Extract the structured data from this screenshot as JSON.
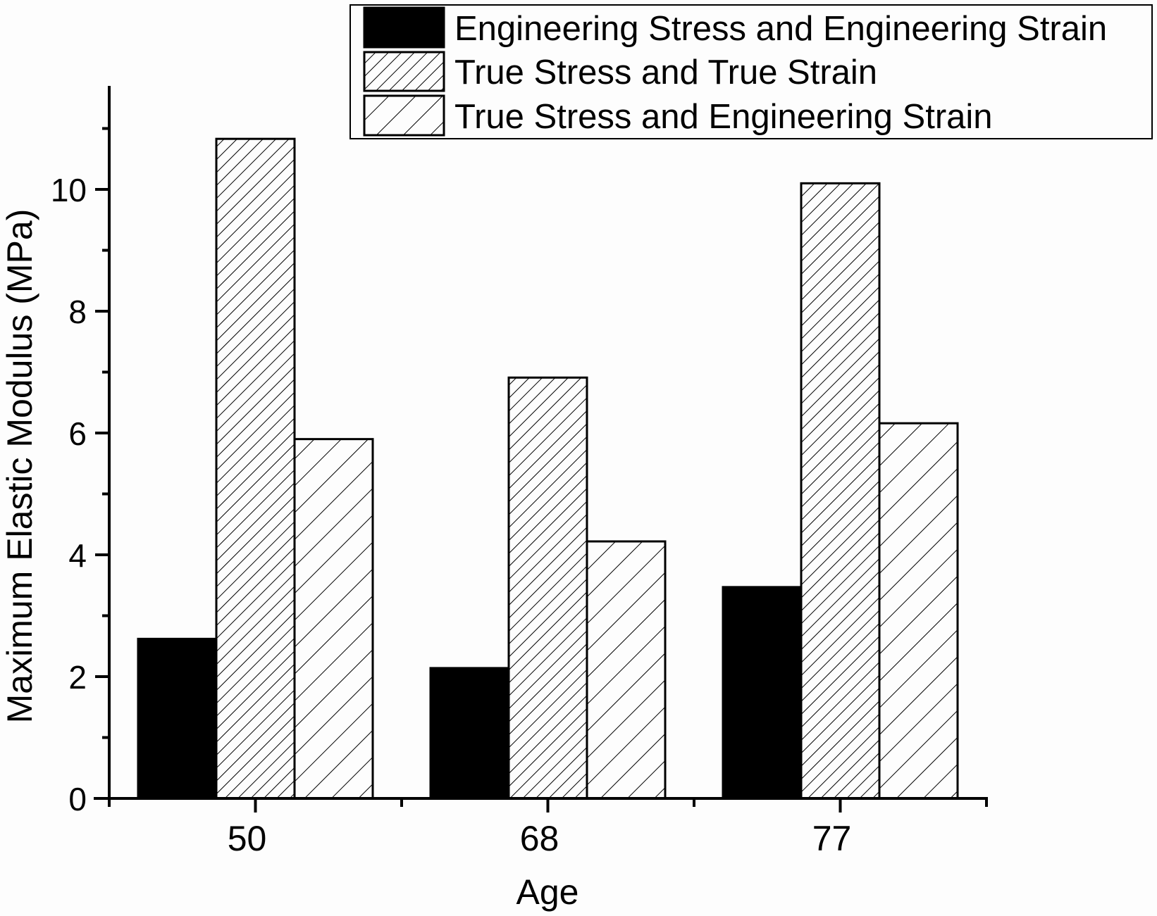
{
  "chart_data": {
    "type": "bar",
    "title": "",
    "xlabel": "Age",
    "ylabel": "Maximum Elastic Modulus (MPa)",
    "categories": [
      "50",
      "68",
      "77"
    ],
    "ylim": [
      0,
      11.5
    ],
    "yticks": [
      0,
      2,
      4,
      6,
      8,
      10
    ],
    "yticks_minor": [
      1,
      3,
      5,
      7,
      9,
      11
    ],
    "grid": false,
    "legend_position": "top-right",
    "series": [
      {
        "name": "Engineering Stress and Engineering Strain",
        "fill": "solid",
        "color": "#000000",
        "values": [
          2.62,
          2.14,
          3.47
        ]
      },
      {
        "name": "True Stress and True Strain",
        "fill": "dense-diagonal-hatch",
        "color": "#000000",
        "values": [
          10.83,
          6.91,
          10.1
        ]
      },
      {
        "name": "True Stress and Engineering Strain",
        "fill": "sparse-diagonal-hatch",
        "color": "#000000",
        "values": [
          5.9,
          4.22,
          6.16
        ]
      }
    ]
  }
}
